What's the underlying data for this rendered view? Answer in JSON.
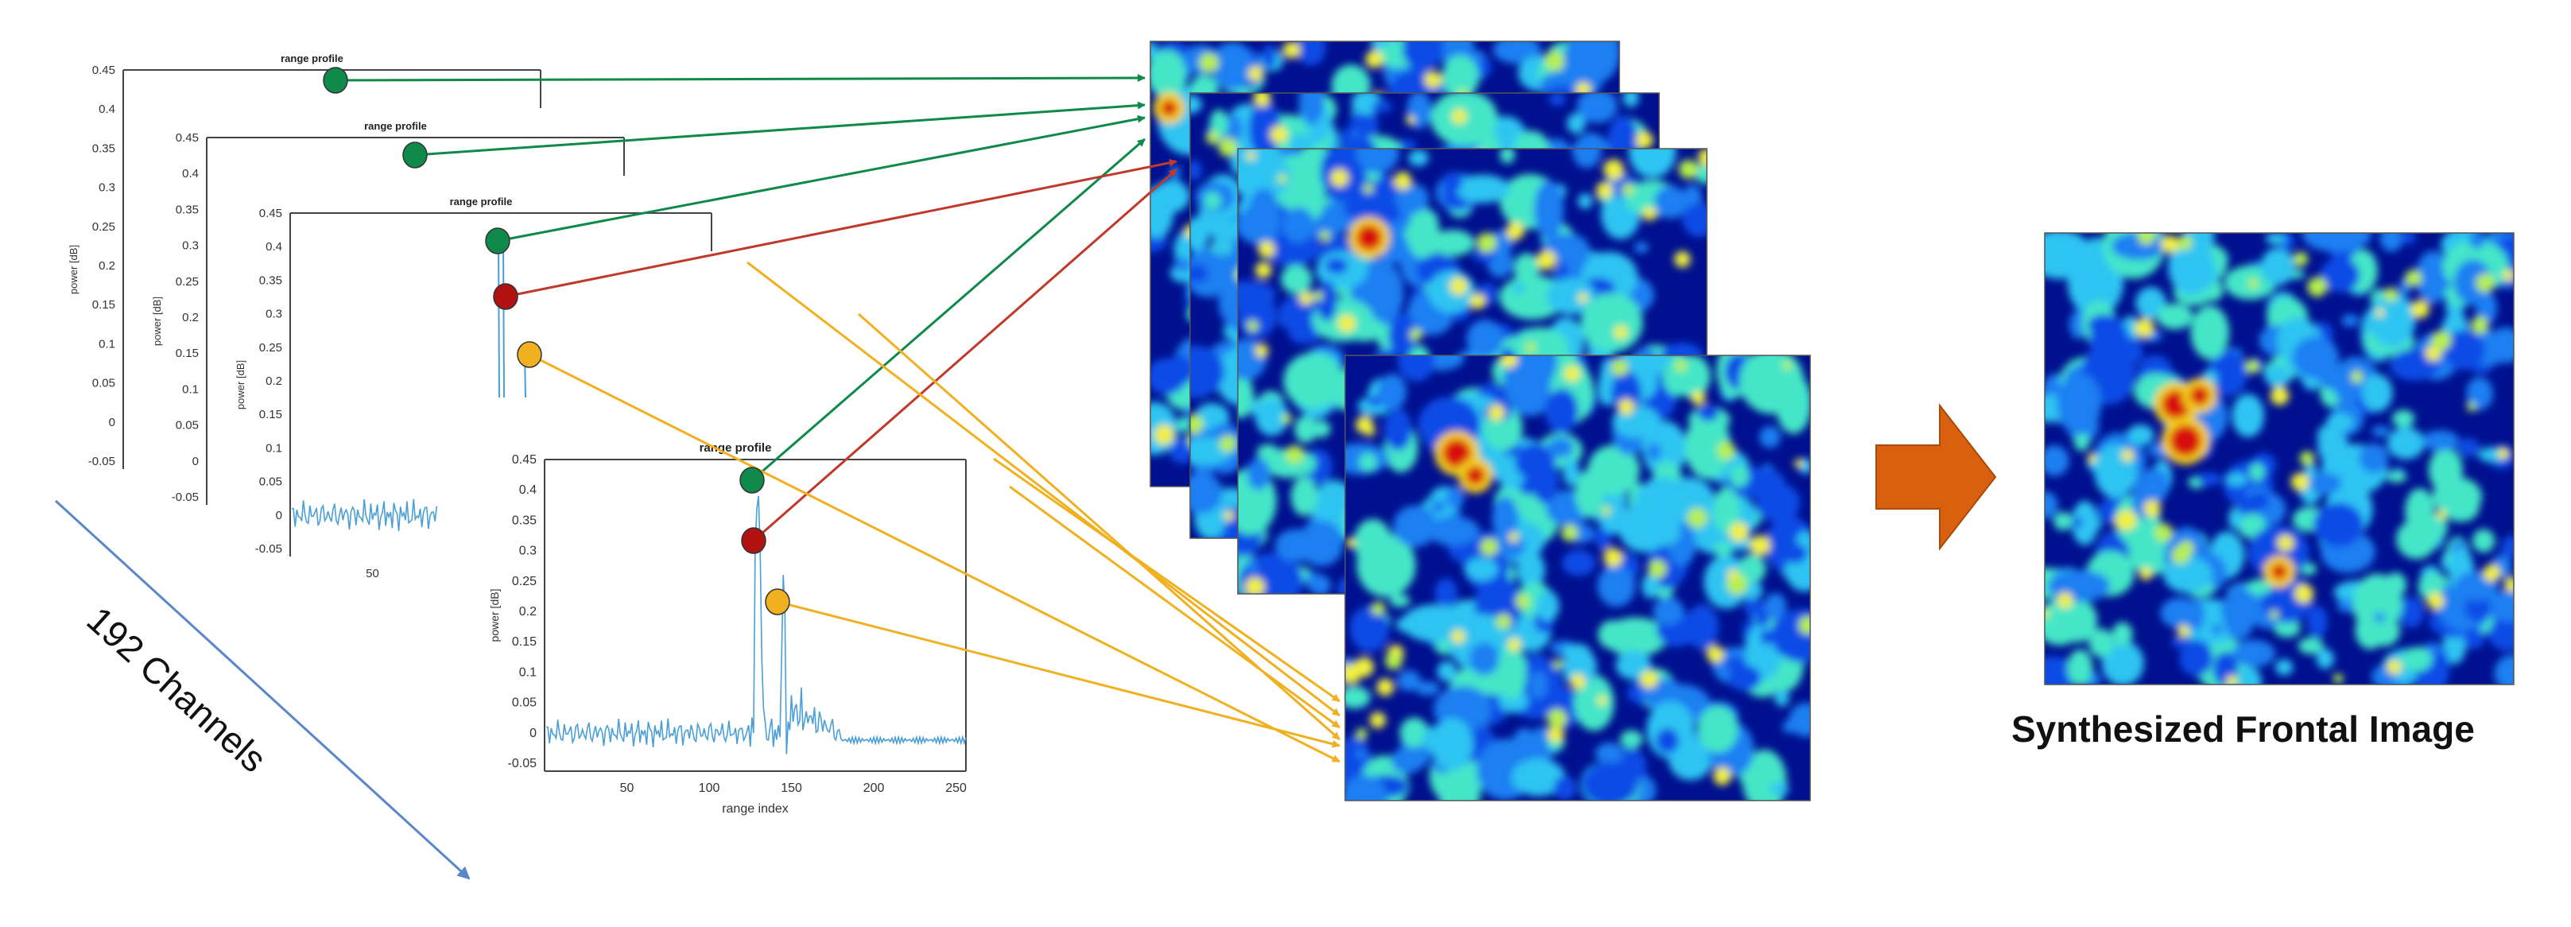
{
  "diagram": {
    "plot_title": "range profile",
    "y_axis_label": "power [dB]",
    "x_axis_label": "range index",
    "y_ticks": [
      "0.45",
      "0.4",
      "0.35",
      "0.3",
      "0.25",
      "0.2",
      "0.15",
      "0.1",
      "0.05",
      "0",
      "-0.05"
    ],
    "x_ticks": [
      "50",
      "100",
      "150",
      "200",
      "250"
    ],
    "x_ticks_third_plot": [
      "50"
    ],
    "channels_label": "192 Channels",
    "output_caption": "Synthesized Frontal Image",
    "colors": {
      "green": "#0f8a4a",
      "red": "#b01212",
      "orange": "#f0b020",
      "signal": "#4a9fd6",
      "big_arrow": "#d9600e",
      "diag_arrow": "#5b86c9"
    }
  }
}
